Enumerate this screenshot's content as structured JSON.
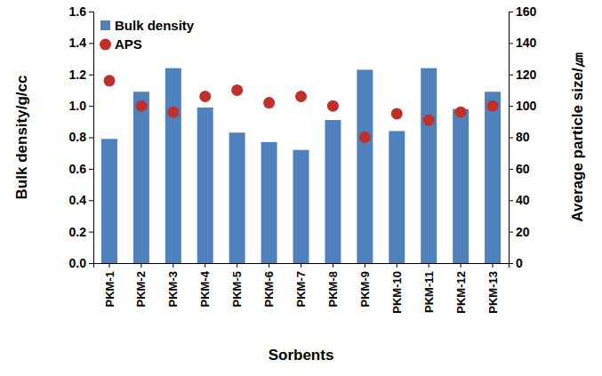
{
  "chart_data": {
    "type": "bar",
    "x_label": "Sorbents",
    "y_label": "Bulk density/g/cc",
    "y2_label": "Average particle size/㎛",
    "categories": [
      "PKM-1",
      "PKM-2",
      "PKM-3",
      "PKM-4",
      "PKM-5",
      "PKM-6",
      "PKM-7",
      "PKM-8",
      "PKM-9",
      "PKM-10",
      "PKM-11",
      "PKM-12",
      "PKM-13"
    ],
    "series": [
      {
        "name": "Bulk density",
        "type": "bar",
        "color": "#4f81bd",
        "values": [
          0.79,
          1.09,
          1.24,
          0.99,
          0.83,
          0.77,
          0.72,
          0.91,
          1.23,
          0.84,
          1.24,
          0.98,
          1.09
        ]
      },
      {
        "name": "APS",
        "type": "scatter",
        "axis": "y2",
        "marker": "circle",
        "color": "#c0302a",
        "values": [
          116,
          100,
          96,
          106,
          110,
          102,
          106,
          100,
          80,
          95,
          91,
          96,
          100
        ]
      }
    ],
    "ylim": [
      0,
      1.6
    ],
    "yticks": [
      {
        "value": 0,
        "label": "0.0"
      },
      0.2,
      0.4,
      0.6,
      0.8,
      {
        "value": 1,
        "label": "1.0"
      },
      1.2,
      1.4,
      1.6
    ],
    "y2lim": [
      0,
      160
    ],
    "y2ticks": [
      0,
      20,
      40,
      60,
      80,
      100,
      120,
      140,
      160
    ],
    "legend": "top-left",
    "grid": false
  }
}
